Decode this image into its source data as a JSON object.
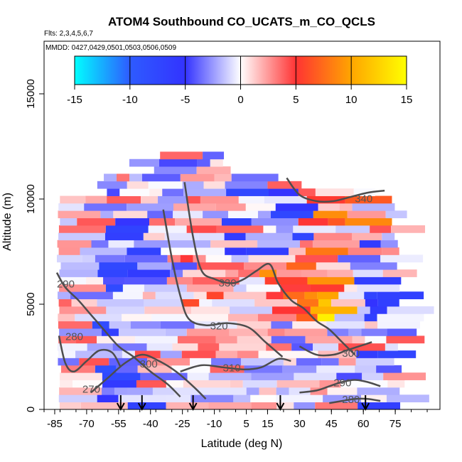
{
  "chart_data": {
    "type": "heatmap",
    "title": "ATOM4 Southbound CO_UCATS_m_CO_QCLS",
    "flights_note": "Flts: 2,3,4,5,6,7",
    "dates_note": "MMDD: 0427,0429,0501,0503,0506,0509",
    "xlabel": "Latitude (deg N)",
    "ylabel": "Altitude (m)",
    "xlim": [
      -90,
      96
    ],
    "ylim": [
      0,
      17500
    ],
    "x_ticks": [
      -85,
      -70,
      -55,
      -40,
      -25,
      -10,
      5,
      15,
      30,
      45,
      60,
      75
    ],
    "y_ticks": [
      0,
      5000,
      10000,
      15000
    ],
    "colorbar": {
      "range": [
        -15,
        15
      ],
      "ticks": [
        -15,
        -10,
        -5,
        0,
        5,
        10,
        15
      ],
      "colors": [
        "#00ffff",
        "#2e5bff",
        "#3333ff",
        "#ffffff",
        "#ff3333",
        "#ffa500",
        "#ffff00"
      ]
    },
    "theta_contours": [
      {
        "level": 280,
        "points": [
          [
            -83,
            3500
          ],
          [
            -80,
            2200
          ],
          [
            -76,
            1800
          ],
          [
            -70,
            2300
          ],
          [
            -64,
            2800
          ],
          [
            -58,
            2700
          ],
          [
            -54,
            2000
          ]
        ]
      },
      {
        "level": 290,
        "points": [
          [
            -84,
            6500
          ],
          [
            -80,
            5800
          ],
          [
            -74,
            5200
          ],
          [
            -68,
            4500
          ],
          [
            -62,
            3800
          ],
          [
            -55,
            3000
          ],
          [
            -48,
            2500
          ],
          [
            -40,
            1800
          ],
          [
            -32,
            1200
          ],
          [
            -26,
            600
          ]
        ]
      },
      {
        "level": 300,
        "points": [
          [
            -68,
            800
          ],
          [
            -60,
            1500
          ],
          [
            -52,
            2200
          ],
          [
            -44,
            2600
          ],
          [
            -36,
            2300
          ],
          [
            -28,
            1800
          ],
          [
            -20,
            1100
          ],
          [
            -14,
            500
          ]
        ]
      },
      {
        "level": 310,
        "points": [
          [
            -26,
            1800
          ],
          [
            -16,
            2100
          ],
          [
            -6,
            2000
          ],
          [
            4,
            1900
          ],
          [
            12,
            2000
          ],
          [
            20,
            2400
          ],
          [
            26,
            2300
          ]
        ]
      },
      {
        "level": 320,
        "points": [
          [
            -34,
            9500
          ],
          [
            -30,
            7200
          ],
          [
            -26,
            5400
          ],
          [
            -22,
            4300
          ],
          [
            -14,
            4000
          ],
          [
            -4,
            4100
          ],
          [
            6,
            3900
          ],
          [
            14,
            3200
          ],
          [
            22,
            2500
          ]
        ]
      },
      {
        "level": 330,
        "points": [
          [
            -24,
            10800
          ],
          [
            -20,
            8200
          ],
          [
            -16,
            6600
          ],
          [
            -10,
            6200
          ],
          [
            -2,
            6000
          ],
          [
            4,
            6200
          ],
          [
            10,
            6600
          ],
          [
            16,
            6900
          ],
          [
            20,
            6000
          ],
          [
            26,
            5200
          ],
          [
            32,
            4800
          ],
          [
            38,
            4200
          ],
          [
            44,
            3800
          ],
          [
            50,
            3200
          ],
          [
            56,
            2600
          ]
        ]
      },
      {
        "level": 340,
        "points": [
          [
            24,
            11000
          ],
          [
            30,
            10200
          ],
          [
            38,
            9900
          ],
          [
            46,
            9900
          ],
          [
            54,
            10100
          ],
          [
            62,
            10300
          ],
          [
            70,
            10400
          ]
        ]
      },
      {
        "level": 300,
        "points": [
          [
            30,
            3000
          ],
          [
            38,
            2600
          ],
          [
            46,
            2600
          ],
          [
            52,
            2800
          ],
          [
            58,
            3000
          ],
          [
            64,
            3200
          ]
        ]
      },
      {
        "level": 290,
        "points": [
          [
            30,
            800
          ],
          [
            38,
            900
          ],
          [
            44,
            1100
          ],
          [
            50,
            1300
          ],
          [
            56,
            1400
          ],
          [
            62,
            1300
          ],
          [
            68,
            1100
          ]
        ]
      },
      {
        "level": 280,
        "points": [
          [
            44,
            300
          ],
          [
            50,
            400
          ],
          [
            56,
            500
          ],
          [
            62,
            500
          ],
          [
            68,
            400
          ]
        ]
      }
    ],
    "contour_labels": [
      "280",
      "290",
      "300",
      "310",
      "320",
      "330",
      "340",
      "300",
      "290",
      "280",
      "270"
    ],
    "sonde_latitudes": [
      -54,
      -44,
      -20,
      21,
      61
    ]
  }
}
